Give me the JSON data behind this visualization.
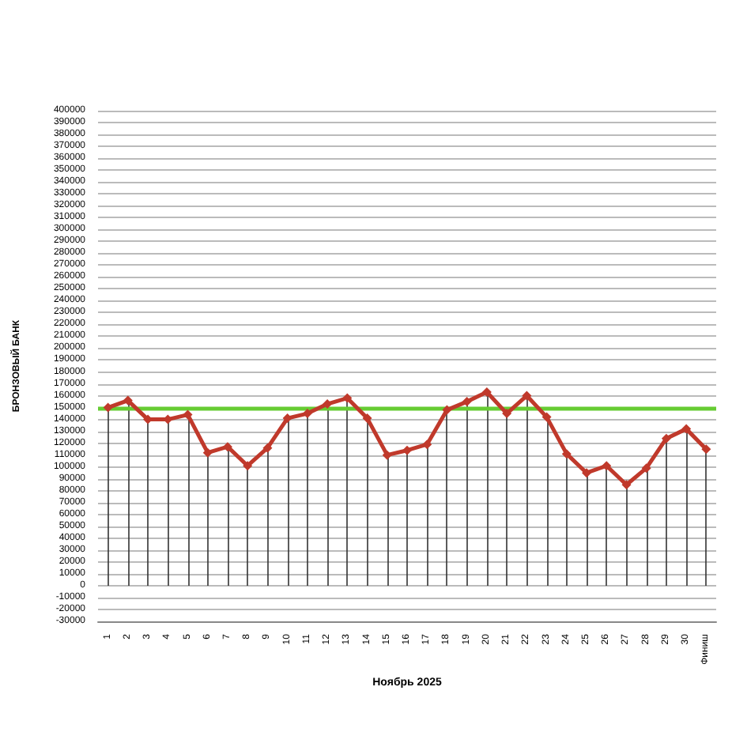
{
  "chart_data": {
    "type": "line",
    "xlabel": "Ноябрь 2025",
    "ylabel": "БРОНЗОВЫЙ БАНК",
    "categories": [
      "1",
      "2",
      "3",
      "4",
      "5",
      "6",
      "7",
      "8",
      "9",
      "10",
      "11",
      "12",
      "13",
      "14",
      "15",
      "16",
      "17",
      "18",
      "19",
      "20",
      "21",
      "22",
      "23",
      "24",
      "25",
      "26",
      "27",
      "28",
      "29",
      "30",
      "Финиш"
    ],
    "series": [
      {
        "color": "#c0392b",
        "values": [
          150000,
          156000,
          140000,
          140000,
          144000,
          112000,
          117000,
          101000,
          116000,
          141000,
          145000,
          153000,
          158000,
          141000,
          110000,
          114000,
          119000,
          148000,
          155000,
          163000,
          145000,
          160000,
          142000,
          111000,
          95000,
          101000,
          85000,
          99000,
          124000,
          132000,
          115000
        ],
        "errors": [
          [
            0,
            150000
          ],
          [
            0,
            156000
          ],
          [
            0,
            140000
          ],
          [
            0,
            140000
          ],
          [
            0,
            144000
          ],
          [
            0,
            112000
          ],
          [
            0,
            117000
          ],
          [
            0,
            101000
          ],
          [
            0,
            116000
          ],
          [
            0,
            141000
          ],
          [
            0,
            145000
          ],
          [
            0,
            153000
          ],
          [
            0,
            158000
          ],
          [
            0,
            141000
          ],
          [
            0,
            110000
          ],
          [
            0,
            114000
          ],
          [
            0,
            119000
          ],
          [
            0,
            148000
          ],
          [
            0,
            155000
          ],
          [
            0,
            163000
          ],
          [
            0,
            145000
          ],
          [
            0,
            160000
          ],
          [
            0,
            142000
          ],
          [
            0,
            111000
          ],
          [
            0,
            95000
          ],
          [
            0,
            101000
          ],
          [
            0,
            85000
          ],
          [
            0,
            99000
          ],
          [
            0,
            124000
          ],
          [
            0,
            132000
          ],
          [
            0,
            115000
          ]
        ]
      }
    ],
    "ylim": [
      -30000,
      400000
    ],
    "yticks": [
      -30000,
      -20000,
      -10000,
      0,
      10000,
      20000,
      30000,
      40000,
      50000,
      60000,
      70000,
      80000,
      90000,
      100000,
      110000,
      120000,
      130000,
      140000,
      150000,
      160000,
      170000,
      180000,
      190000,
      200000,
      210000,
      220000,
      230000,
      240000,
      250000,
      260000,
      270000,
      280000,
      290000,
      300000,
      310000,
      320000,
      330000,
      340000,
      350000,
      360000,
      370000,
      380000,
      390000,
      400000
    ],
    "ref_lines": [
      {
        "axis": "y",
        "value": 150000,
        "color": "#66cc33"
      }
    ],
    "grid": "y",
    "marker": "diamond",
    "line_style": "solid"
  }
}
